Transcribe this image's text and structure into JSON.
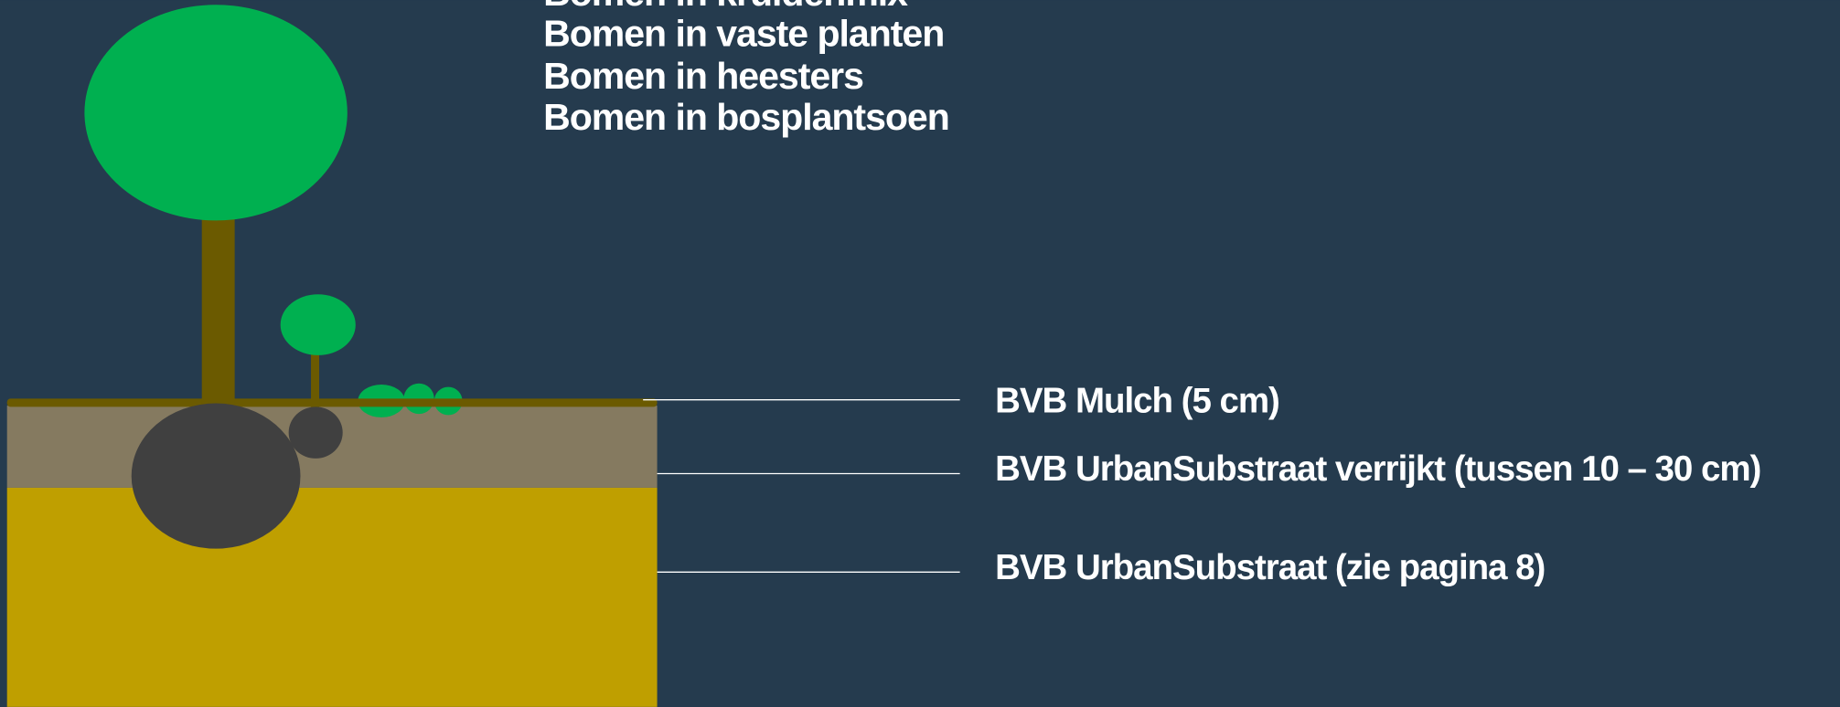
{
  "plant_list": [
    "Bomen in kruidenmix",
    "Bomen in vaste planten",
    "Bomen in heesters",
    "Bomen in bosplantsoen"
  ],
  "layers": [
    {
      "label": "BVB Mulch (5 cm)"
    },
    {
      "label": "BVB UrbanSubstraat verrijkt (tussen 10 – 30 cm)"
    },
    {
      "label": "BVB UrbanSubstraat (zie pagina 8)"
    }
  ]
}
